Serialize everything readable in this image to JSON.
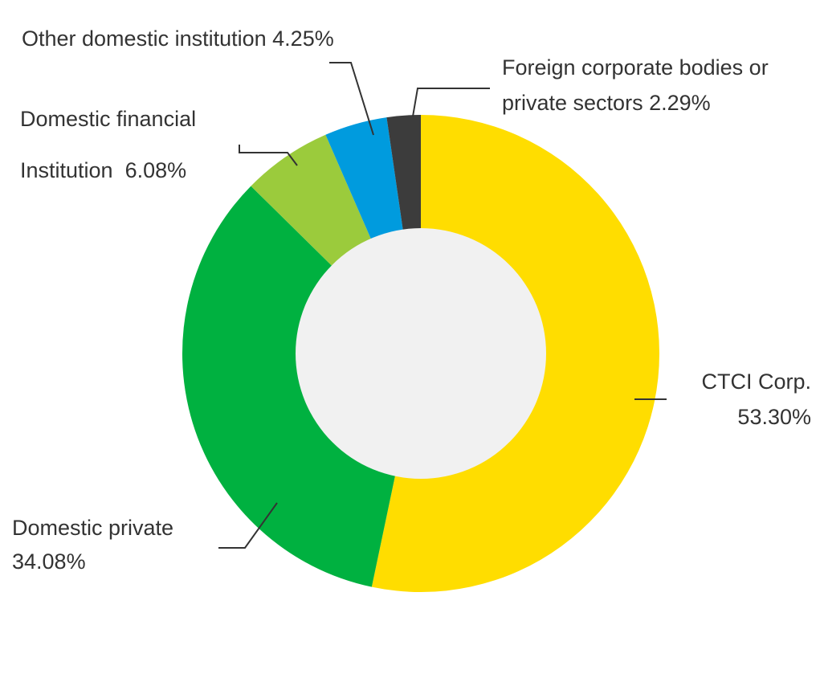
{
  "chart_data": {
    "type": "donut",
    "categories": [
      "CTCI Corp.",
      "Domestic private",
      "Domestic financial Institution",
      "Other domestic institution",
      "Foreign corporate bodies or private sectors"
    ],
    "values": [
      53.3,
      34.08,
      6.08,
      4.25,
      2.29
    ],
    "value_labels": [
      "53.30%",
      "34.08%",
      "6.08%",
      "4.25%",
      "2.29%"
    ],
    "colors": [
      "#FFDD00",
      "#00B140",
      "#9BCB3C",
      "#009BDE",
      "#3C3C3C"
    ]
  }
}
